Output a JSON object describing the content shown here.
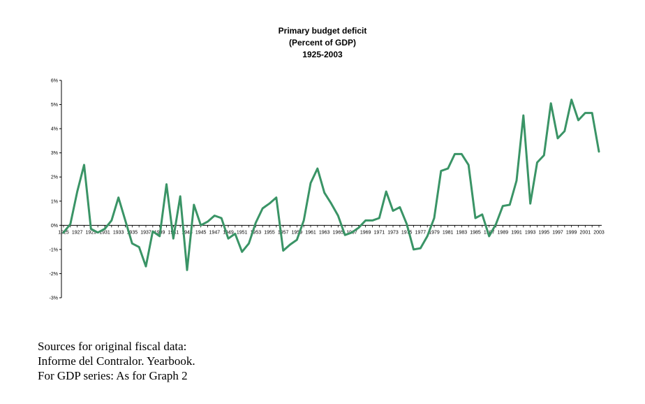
{
  "chart_data": {
    "type": "line",
    "title": "Primary budget deficit",
    "subtitle": "(Percent of GDP)",
    "period": "1925-2003",
    "xlabel": "",
    "ylabel": "",
    "ylim": [
      -3,
      6
    ],
    "yticks": [
      -3,
      -2,
      -1,
      0,
      1,
      2,
      3,
      4,
      5,
      6
    ],
    "ytick_labels": [
      "-3%",
      "-2%",
      "-1%",
      "0%",
      "1%",
      "2%",
      "3%",
      "4%",
      "5%",
      "6%"
    ],
    "xlim": [
      1925,
      2003
    ],
    "xtick_labels": [
      "1925",
      "1927",
      "1929",
      "1931",
      "1933",
      "1935",
      "1937",
      "1939",
      "1941",
      "1943",
      "1945",
      "1947",
      "1949",
      "1951",
      "1953",
      "1955",
      "1957",
      "1959",
      "1961",
      "1963",
      "1965",
      "1967",
      "1969",
      "1971",
      "1973",
      "1975",
      "1977",
      "1979",
      "1981",
      "1983",
      "1985",
      "1987",
      "1989",
      "1991",
      "1993",
      "1995",
      "1997",
      "1999",
      "2001",
      "2003"
    ],
    "grid": false,
    "line_color": "#3a9466",
    "series": [
      {
        "x": [
          1925,
          1926,
          1927,
          1928,
          1929,
          1930,
          1931,
          1932,
          1933,
          1934,
          1935,
          1936,
          1937,
          1938,
          1939,
          1940,
          1941,
          1942,
          1943,
          1944,
          1945,
          1946,
          1947,
          1948,
          1949,
          1950,
          1951,
          1952,
          1953,
          1954,
          1955,
          1956,
          1957,
          1958,
          1959,
          1960,
          1961,
          1962,
          1963,
          1964,
          1965,
          1966,
          1967,
          1968,
          1969,
          1970,
          1971,
          1972,
          1973,
          1974,
          1975,
          1976,
          1977,
          1978,
          1979,
          1980,
          1981,
          1982,
          1983,
          1984,
          1985,
          1986,
          1987,
          1988,
          1989,
          1990,
          1991,
          1992,
          1993,
          1994,
          1995,
          1996,
          1997,
          1998,
          1999,
          2000,
          2001,
          2002,
          2003
        ],
        "values": [
          -0.3,
          0.05,
          1.4,
          2.5,
          -0.15,
          -0.3,
          -0.15,
          0.2,
          1.15,
          0.2,
          -0.75,
          -0.9,
          -1.7,
          -0.25,
          -0.45,
          1.7,
          -0.55,
          1.2,
          -1.85,
          0.85,
          0.0,
          0.15,
          0.4,
          0.3,
          -0.55,
          -0.35,
          -1.1,
          -0.75,
          0.1,
          0.7,
          0.9,
          1.15,
          -1.05,
          -0.8,
          -0.6,
          0.2,
          1.75,
          2.35,
          1.35,
          0.9,
          0.4,
          -0.4,
          -0.3,
          -0.1,
          0.2,
          0.2,
          0.3,
          1.4,
          0.6,
          0.75,
          0.05,
          -1.0,
          -0.95,
          -0.45,
          0.3,
          2.25,
          2.35,
          2.95,
          2.95,
          2.5,
          0.3,
          0.45,
          -0.45,
          0.05,
          0.8,
          0.85,
          1.85,
          4.55,
          0.9,
          2.6,
          2.9,
          5.05,
          3.6,
          3.9,
          5.2,
          4.35,
          4.65,
          4.65,
          3.05
        ]
      }
    ]
  },
  "sources": {
    "line1": "Sources for original fiscal data:",
    "line2": "Informe del Contralor. Yearbook.",
    "line3": "For GDP series: As for Graph 2"
  }
}
